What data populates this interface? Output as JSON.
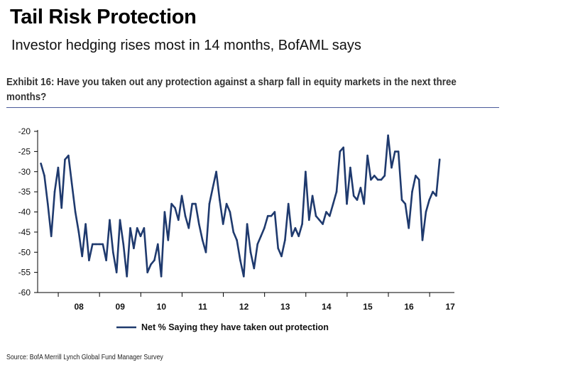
{
  "headline": "Tail Risk Protection",
  "subheadline": "Investor hedging rises most in 14 months, BofAML says",
  "exhibit": {
    "title": "Exhibit 16: Have you taken out any protection against a sharp fall in equity markets in the next three months?"
  },
  "source": "Source: BofA Merrill Lynch Global Fund Manager Survey",
  "chart_data": {
    "type": "line",
    "title": "Exhibit 16: Have you taken out any protection against a sharp fall in equity markets in the next three months?",
    "xlabel": "",
    "ylabel": "",
    "ylim": [
      -60,
      -20
    ],
    "yticks": [
      -20,
      -25,
      -30,
      -35,
      -40,
      -45,
      -50,
      -55,
      -60
    ],
    "xlim": [
      2007.5,
      2017.6
    ],
    "xticks": [
      {
        "label": "08",
        "x": 2008.5
      },
      {
        "label": "09",
        "x": 2009.5
      },
      {
        "label": "10",
        "x": 2010.5
      },
      {
        "label": "11",
        "x": 2011.5
      },
      {
        "label": "12",
        "x": 2012.5
      },
      {
        "label": "13",
        "x": 2013.5
      },
      {
        "label": "14",
        "x": 2014.5
      },
      {
        "label": "15",
        "x": 2015.5
      },
      {
        "label": "16",
        "x": 2016.5
      },
      {
        "label": "17",
        "x": 2017.5
      }
    ],
    "tick_boundaries": [
      2008,
      2009,
      2010,
      2011,
      2012,
      2013,
      2014,
      2015,
      2016,
      2017
    ],
    "grid": false,
    "legend_position": "bottom",
    "series": [
      {
        "name": "Net % Saying they have taken out protection",
        "color": "#1f3a6e",
        "start": 2007.58,
        "step": 0.0833,
        "values": [
          -28,
          -31,
          -38,
          -46,
          -35,
          -29,
          -39,
          -27,
          -26,
          -33,
          -40,
          -45,
          -51,
          -43,
          -52,
          -48,
          -48,
          -48,
          -48,
          -52,
          -42,
          -50,
          -55,
          -42,
          -48,
          -56,
          -44,
          -49,
          -44,
          -46,
          -44,
          -55,
          -53,
          -52,
          -48,
          -56,
          -40,
          -47,
          -38,
          -39,
          -42,
          -36,
          -41,
          -44,
          -38,
          -38,
          -43,
          -47,
          -50,
          -38,
          -34,
          -30,
          -37,
          -43,
          -38,
          -40,
          -45,
          -47,
          -52,
          -56,
          -43,
          -50,
          -54,
          -48,
          -46,
          -44,
          -41,
          -41,
          -40,
          -49,
          -51,
          -47,
          -38,
          -46,
          -44,
          -46,
          -43,
          -30,
          -42,
          -36,
          -41,
          -42,
          -43,
          -40,
          -41,
          -38,
          -35,
          -25,
          -24,
          -38,
          -29,
          -36,
          -37,
          -34,
          -38,
          -26,
          -32,
          -31,
          -32,
          -32,
          -31,
          -21,
          -29,
          -25,
          -25,
          -37,
          -38,
          -44,
          -35,
          -31,
          -32,
          -47,
          -40,
          -37,
          -35,
          -36,
          -27
        ]
      }
    ]
  }
}
